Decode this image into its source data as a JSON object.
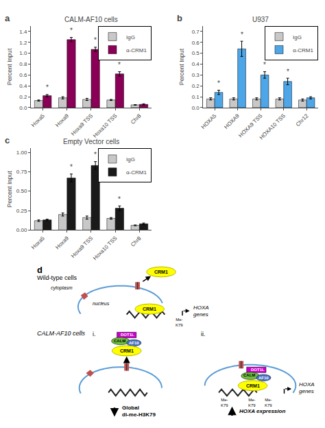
{
  "chart_data": [
    {
      "type": "bar",
      "title": "CALM-AF10 cells",
      "categories": [
        "Hoxa5",
        "Hoxa9",
        "Hoxa9 TSS",
        "Hoxa10 TSS",
        "Chr8"
      ],
      "ylabel": "Percent Input",
      "series": [
        {
          "name": "IgG",
          "color": "#c8c8c8",
          "values": [
            0.13,
            0.18,
            0.15,
            0.14,
            0.05
          ],
          "errors": [
            0.01,
            0.02,
            0.02,
            0.01,
            0.005
          ]
        },
        {
          "name": "α-CRM1",
          "color": "#8B0057",
          "values": [
            0.22,
            1.25,
            1.07,
            0.62,
            0.06
          ],
          "errors": [
            0.02,
            0.04,
            0.04,
            0.04,
            0.01
          ]
        }
      ],
      "ylim": [
        0,
        1.5
      ],
      "yticks": [
        {
          "value": 0,
          "label": "0.0"
        },
        0.2,
        0.4,
        0.6,
        0.8,
        {
          "value": 1,
          "label": "1.0"
        },
        1.2,
        1.4
      ],
      "grid": false,
      "legend": "upper right",
      "annotations": [
        {
          "text": "a"
        },
        {
          "text": "*",
          "category": "Hoxa5",
          "series": "α-CRM1"
        },
        {
          "text": "*",
          "category": "Hoxa9",
          "series": "α-CRM1"
        },
        {
          "text": "*",
          "category": "Hoxa9 TSS",
          "series": "α-CRM1"
        },
        {
          "text": "*",
          "category": "Hoxa10 TSS",
          "series": "α-CRM1"
        }
      ]
    },
    {
      "type": "bar",
      "title": "U937",
      "categories": [
        "HOXA5",
        "HOXA9",
        "HOXA9 TSS",
        "HOXA10 TSS",
        "Chr12"
      ],
      "ylabel": "Percent Input",
      "series": [
        {
          "name": "IgG",
          "color": "#c8c8c8",
          "values": [
            0.08,
            0.08,
            0.08,
            0.08,
            0.07
          ],
          "errors": [
            0.01,
            0.01,
            0.01,
            0.01,
            0.01
          ]
        },
        {
          "name": "α-CRM1",
          "color": "#4da6e8",
          "values": [
            0.14,
            0.54,
            0.3,
            0.24,
            0.09
          ],
          "errors": [
            0.02,
            0.07,
            0.03,
            0.03,
            0.01
          ]
        }
      ],
      "ylim": [
        0,
        0.75
      ],
      "yticks": [
        {
          "value": 0,
          "label": "0.0"
        },
        0.1,
        0.2,
        0.3,
        0.4,
        0.5,
        0.6,
        0.7
      ],
      "grid": false,
      "legend": "upper right",
      "annotations": [
        {
          "text": "b"
        },
        {
          "text": "*",
          "category": "HOXA5",
          "series": "α-CRM1"
        },
        {
          "text": "*",
          "category": "HOXA9",
          "series": "α-CRM1"
        },
        {
          "text": "*",
          "category": "HOXA9 TSS",
          "series": "α-CRM1"
        },
        {
          "text": "*",
          "category": "HOXA10 TSS",
          "series": "α-CRM1"
        }
      ]
    },
    {
      "type": "bar",
      "title": "Empty Vector cells",
      "categories": [
        "Hoxa5",
        "Hoxa9",
        "Hoxa9 TSS",
        "Hoxa10 TSS",
        "Chr8"
      ],
      "ylabel": "Percent Input",
      "series": [
        {
          "name": "IgG",
          "color": "#c8c8c8",
          "values": [
            0.12,
            0.2,
            0.16,
            0.15,
            0.06
          ],
          "errors": [
            0.01,
            0.02,
            0.02,
            0.01,
            0.005
          ]
        },
        {
          "name": "α-CRM1",
          "color": "#1a1a1a",
          "values": [
            0.13,
            0.67,
            0.83,
            0.28,
            0.08
          ],
          "errors": [
            0.01,
            0.05,
            0.05,
            0.03,
            0.01
          ]
        }
      ],
      "ylim": [
        0,
        1.05
      ],
      "yticks": [
        {
          "value": 0,
          "label": "0.00"
        },
        0.25,
        {
          "value": 0.5,
          "label": "0.50"
        },
        0.75,
        {
          "value": 1,
          "label": "1.00"
        }
      ],
      "grid": false,
      "legend": "upper right",
      "annotations": [
        {
          "text": "c"
        },
        {
          "text": "*",
          "category": "Hoxa9",
          "series": "α-CRM1"
        },
        {
          "text": "*",
          "category": "Hoxa9 TSS",
          "series": "α-CRM1"
        },
        {
          "text": "*",
          "category": "Hoxa10 TSS",
          "series": "α-CRM1"
        }
      ]
    },
    {
      "type": "diagram",
      "annotations": [
        "d",
        "Wild-type cells",
        "cytoplasm",
        "nucleus",
        "CRM1",
        "CRM1",
        "Me-\nK79",
        "HOXA\ngenes",
        "CALM-AF10 cells",
        "i.",
        "DOT1L",
        "CALM",
        "AF10",
        "CRM1",
        "Global\ndi-me-H3K79",
        "ii.",
        "DOT1L",
        "CALM",
        "AF10",
        "CRM1",
        "Me-\nK79",
        "Me-\nK79",
        "Me-\nK79",
        "HOXA\ngenes",
        "HOXA expression"
      ],
      "colors": [
        "#5b9bd5",
        "#c0504d",
        "#ffff00",
        "#b8b800",
        "#cc00cc",
        "#70c040",
        "#4472c4",
        "#222222"
      ]
    }
  ]
}
